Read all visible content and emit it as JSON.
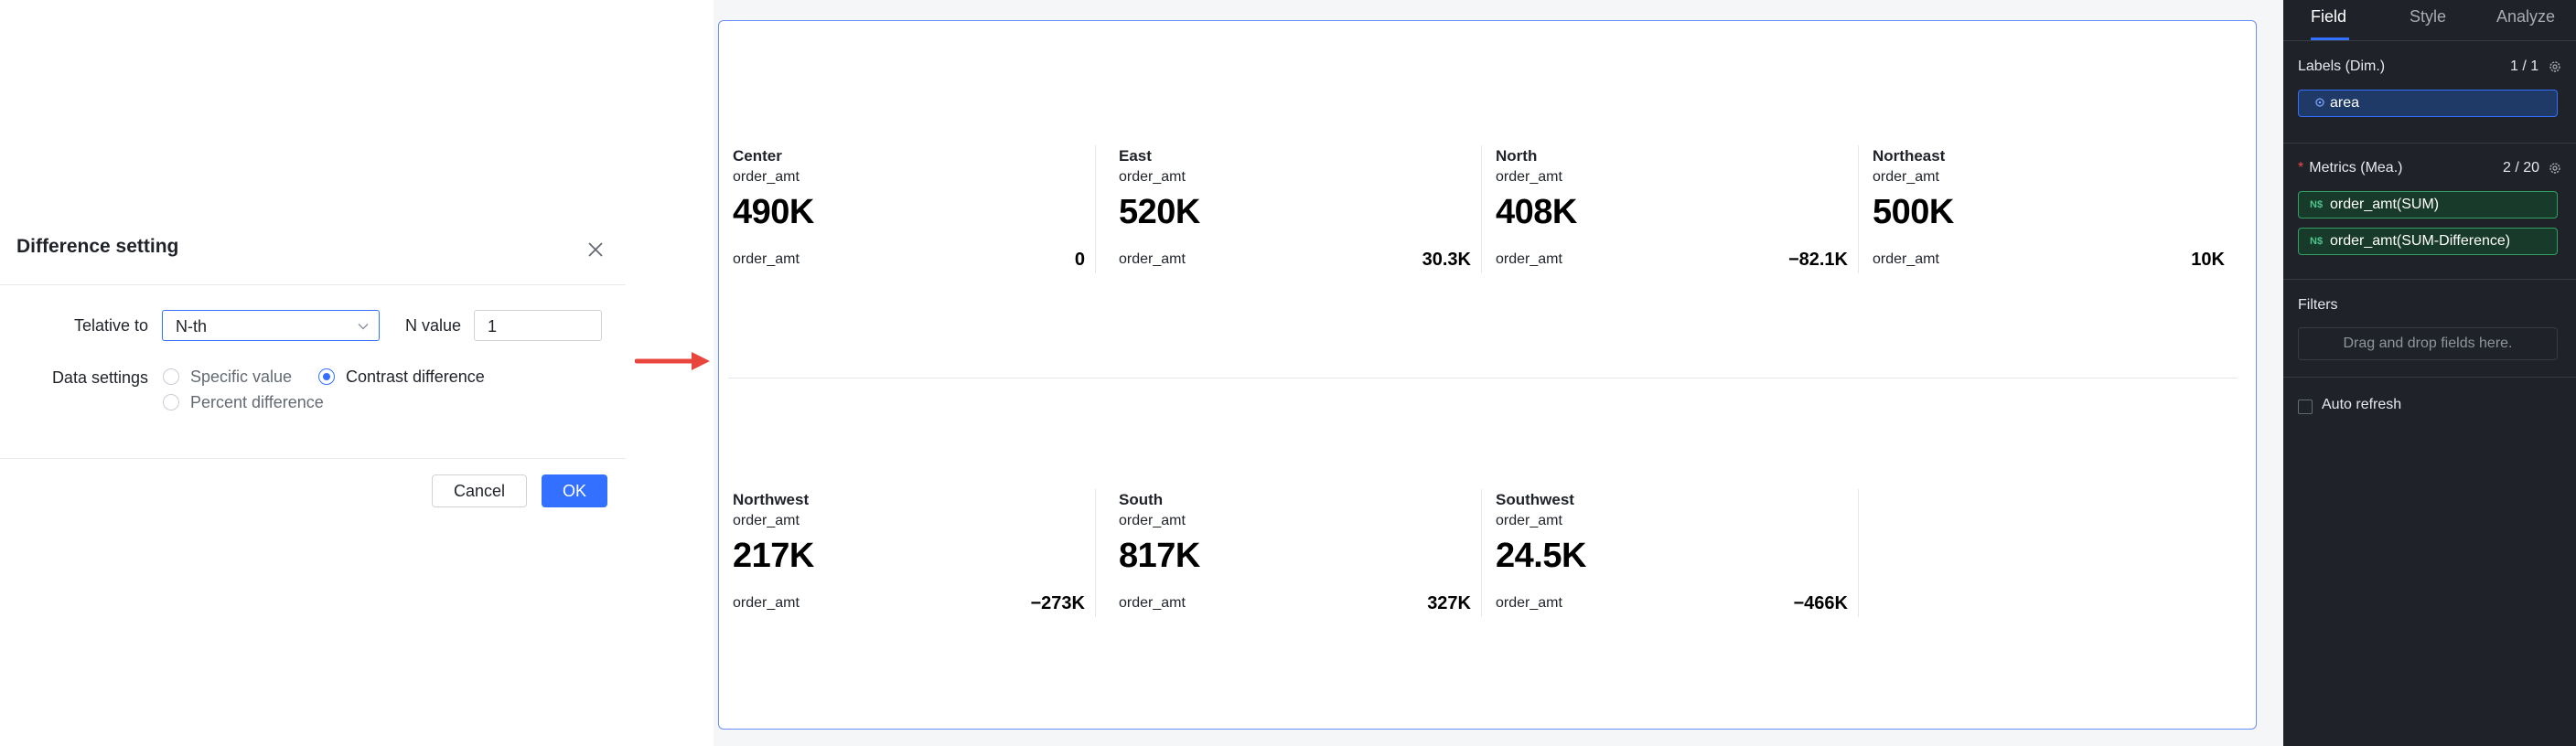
{
  "dialog": {
    "title": "Difference setting",
    "relative_to_label": "Telative to",
    "relative_to_value": "N-th",
    "n_value_label": "N value",
    "n_value": "1",
    "data_settings_label": "Data settings",
    "options": {
      "specific_value": "Specific value",
      "contrast_difference": "Contrast difference",
      "percent_difference": "Percent difference"
    },
    "selected_option": "contrast_difference",
    "cancel_label": "Cancel",
    "ok_label": "OK"
  },
  "kpis": [
    {
      "name": "Center",
      "measure": "order_amt",
      "value": "490K",
      "sub_label": "order_amt",
      "sub_value": "0"
    },
    {
      "name": "East",
      "measure": "order_amt",
      "value": "520K",
      "sub_label": "order_amt",
      "sub_value": "30.3K"
    },
    {
      "name": "North",
      "measure": "order_amt",
      "value": "408K",
      "sub_label": "order_amt",
      "sub_value": "−82.1K"
    },
    {
      "name": "Northeast",
      "measure": "order_amt",
      "value": "500K",
      "sub_label": "order_amt",
      "sub_value": "10K"
    },
    {
      "name": "Northwest",
      "measure": "order_amt",
      "value": "217K",
      "sub_label": "order_amt",
      "sub_value": "−273K"
    },
    {
      "name": "South",
      "measure": "order_amt",
      "value": "817K",
      "sub_label": "order_amt",
      "sub_value": "327K"
    },
    {
      "name": "Southwest",
      "measure": "order_amt",
      "value": "24.5K",
      "sub_label": "order_amt",
      "sub_value": "−466K"
    }
  ],
  "panel": {
    "tabs": [
      "Field",
      "Style",
      "Analyze"
    ],
    "active_tab": "Field",
    "labels_title": "Labels (Dim.)",
    "labels_count": "1 / 1",
    "label_field": "area",
    "metrics_title": "Metrics (Mea.)",
    "metrics_count": "2 / 20",
    "metric_fields": [
      "order_amt(SUM)",
      "order_amt(SUM-Difference)"
    ],
    "metric_icon": "N$",
    "filters_title": "Filters",
    "filters_placeholder": "Drag and drop fields here.",
    "auto_refresh_label": "Auto refresh"
  },
  "colors": {
    "accent": "#3370ff",
    "arrow": "#e8453c",
    "panel_bg": "#1f2329",
    "metric_green": "#2ea15e"
  }
}
